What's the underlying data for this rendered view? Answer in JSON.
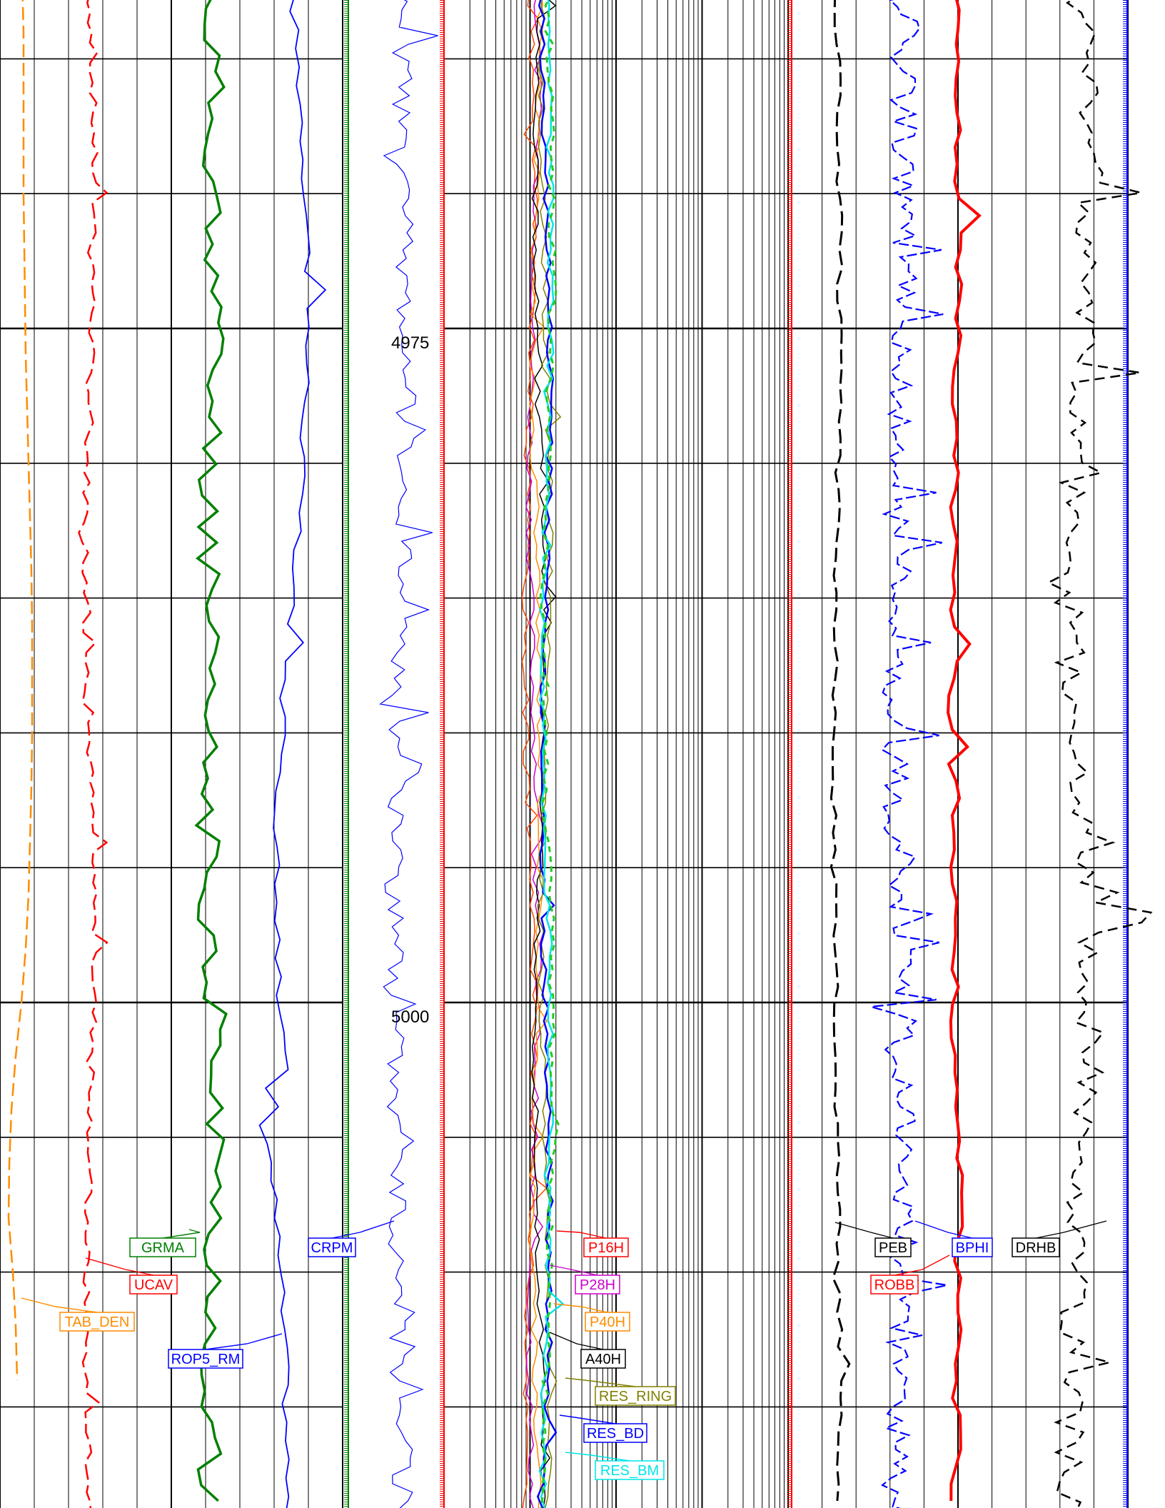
{
  "chart_data": {
    "type": "line",
    "title": "",
    "depth_axis": {
      "range": [
        4950,
        5015
      ],
      "labels": [
        "4975",
        "5000"
      ],
      "label_values": [
        4975,
        5000
      ],
      "major_step": 5,
      "minor_step": 1
    },
    "tracks": [
      {
        "name": "track-1",
        "grid": "linear",
        "series": [
          {
            "name": "TAB_DEN",
            "color": "#ff8c00",
            "style": "dashed"
          },
          {
            "name": "UCAV",
            "color": "#ff0000",
            "style": "dashed"
          },
          {
            "name": "GRMA",
            "color": "#008000",
            "style": "solid-thick"
          },
          {
            "name": "ROP5_RM",
            "color": "#0000ff",
            "style": "solid"
          }
        ]
      },
      {
        "name": "depth-track",
        "grid": "none",
        "series": [
          {
            "name": "CRPM",
            "color": "#0000ff",
            "style": "solid"
          }
        ]
      },
      {
        "name": "resistivity-track",
        "grid": "logarithmic",
        "series": [
          {
            "name": "P16H",
            "color": "#ff0000",
            "style": "solid"
          },
          {
            "name": "P28H",
            "color": "#cc00cc",
            "style": "solid"
          },
          {
            "name": "P40H",
            "color": "#ff8c00",
            "style": "solid"
          },
          {
            "name": "A40H",
            "color": "#000000",
            "style": "solid"
          },
          {
            "name": "RES_RING",
            "color": "#808000",
            "style": "solid"
          },
          {
            "name": "RES_BD",
            "color": "#0000ff",
            "style": "solid"
          },
          {
            "name": "RES_BM",
            "color": "#00e5e5",
            "style": "solid"
          }
        ]
      },
      {
        "name": "density-track",
        "grid": "linear",
        "series": [
          {
            "name": "PEB",
            "color": "#000000",
            "style": "dashed"
          },
          {
            "name": "BPHI",
            "color": "#0000ff",
            "style": "dashed"
          },
          {
            "name": "ROBB",
            "color": "#ff0000",
            "style": "solid-thick"
          },
          {
            "name": "DRHB",
            "color": "#000000",
            "style": "dashed"
          }
        ]
      }
    ],
    "curves_sampled": {
      "depth": [
        4950,
        4952,
        4954,
        4956,
        4958,
        4960,
        4962,
        4964,
        4966,
        4968,
        4970,
        4972,
        4974,
        4976,
        4978,
        4980,
        4982,
        4984,
        4986,
        4988,
        4990,
        4992,
        4994,
        4996,
        4998,
        5000,
        5002,
        5004,
        5006,
        5008,
        5010,
        5012,
        5014
      ],
      "TAB_DEN": [
        0.28,
        0.28,
        0.29,
        0.3,
        0.3,
        0.3,
        0.31,
        0.33,
        0.33,
        0.33,
        0.33,
        0.34,
        0.35,
        0.36,
        0.38,
        0.4,
        0.42,
        0.44,
        0.45,
        0.45,
        0.45,
        0.44,
        0.42,
        0.4,
        0.36,
        0.3,
        0.22,
        0.16,
        0.13,
        0.12,
        0.18,
        0.22,
        0.24
      ],
      "UCAV": [
        0.66,
        0.66,
        0.67,
        0.67,
        0.68,
        0.68,
        0.67,
        0.67,
        0.68,
        0.67,
        0.67,
        0.67,
        0.67,
        0.66,
        0.67,
        0.68,
        0.69,
        0.68,
        0.68,
        0.66,
        0.65,
        0.66,
        0.66,
        0.66,
        0.66,
        0.66,
        0.67,
        0.68,
        0.67,
        0.68,
        0.67,
        0.67,
        0.66
      ],
      "GRMA": [
        1.42,
        1.45,
        1.41,
        1.4,
        1.43,
        1.46,
        1.45,
        1.42,
        1.4,
        1.42,
        1.38,
        1.41,
        1.39,
        1.4,
        1.44,
        1.42,
        1.46,
        1.41,
        1.43,
        1.4,
        1.45,
        1.41,
        1.42,
        1.45,
        1.43,
        1.42,
        1.4,
        1.38,
        1.41,
        1.42,
        1.41,
        1.38,
        1.45
      ],
      "ROP5_RM": [
        2.18,
        2.1,
        2.05,
        2.08,
        2.2,
        2.25,
        2.27,
        2.22,
        2.15,
        2.2,
        2.18,
        2.16,
        2.2,
        2.12,
        2.22,
        2.26,
        2.27,
        2.2,
        2.16,
        2.12,
        2.05,
        2.02,
        2.08,
        2.15,
        2.22,
        2.3,
        2.26,
        2.12,
        2.0,
        1.95,
        1.93,
        1.9,
        1.98
      ]
    }
  },
  "series_tags": {
    "grma": "GRMA",
    "ucav": "UCAV",
    "tab_den": "TAB_DEN",
    "rop5_rm": "ROP5_RM",
    "crpm": "CRPM",
    "p16h": "P16H",
    "p28h": "P28H",
    "p40h": "P40H",
    "a40h": "A40H",
    "res_ring": "RES_RING",
    "res_bd": "RES_BD",
    "res_bm": "RES_BM",
    "peb": "PEB",
    "robb": "ROBB",
    "bphi": "BPHI",
    "drhb": "DRHB"
  },
  "colors": {
    "grid": "#000000",
    "track_sep_green": "#008000",
    "track_sep_red": "#ff0000",
    "track_sep_blue": "#0000ff"
  }
}
